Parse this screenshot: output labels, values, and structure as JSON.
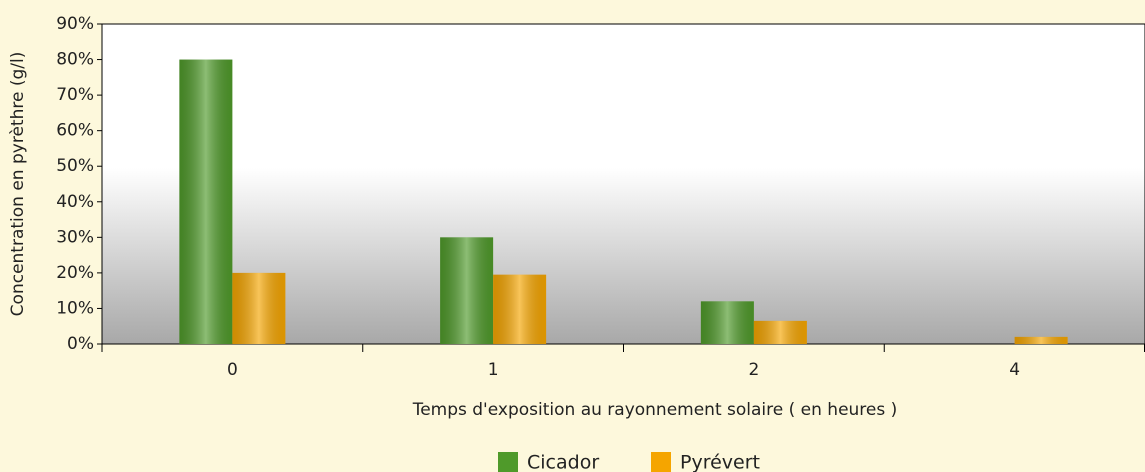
{
  "chart_data": {
    "type": "bar",
    "y_label": "Concentration en pyrèthre (g/l)",
    "x_label": "Temps d'exposition au rayonnement solaire ( en heures )",
    "categories": [
      "0",
      "1",
      "2",
      "4"
    ],
    "series": [
      {
        "name": "Cicador",
        "color": "#4f9a2a",
        "values": [
          80,
          30,
          12,
          0
        ]
      },
      {
        "name": "Pyrévert",
        "color": "#f5a500",
        "values": [
          20,
          19.5,
          6.5,
          2
        ]
      }
    ],
    "ylim": [
      0,
      90
    ],
    "yticks": [
      {
        "value": 0,
        "label": "0%"
      },
      {
        "value": 10,
        "label": "10%"
      },
      {
        "value": 20,
        "label": "20%"
      },
      {
        "value": 30,
        "label": "30%"
      },
      {
        "value": 40,
        "label": "40%"
      },
      {
        "value": 50,
        "label": "50%"
      },
      {
        "value": 60,
        "label": "60%"
      },
      {
        "value": 70,
        "label": "70%"
      },
      {
        "value": 80,
        "label": "80%"
      },
      {
        "value": 90,
        "label": "90%"
      }
    ],
    "legend": "bottom"
  }
}
